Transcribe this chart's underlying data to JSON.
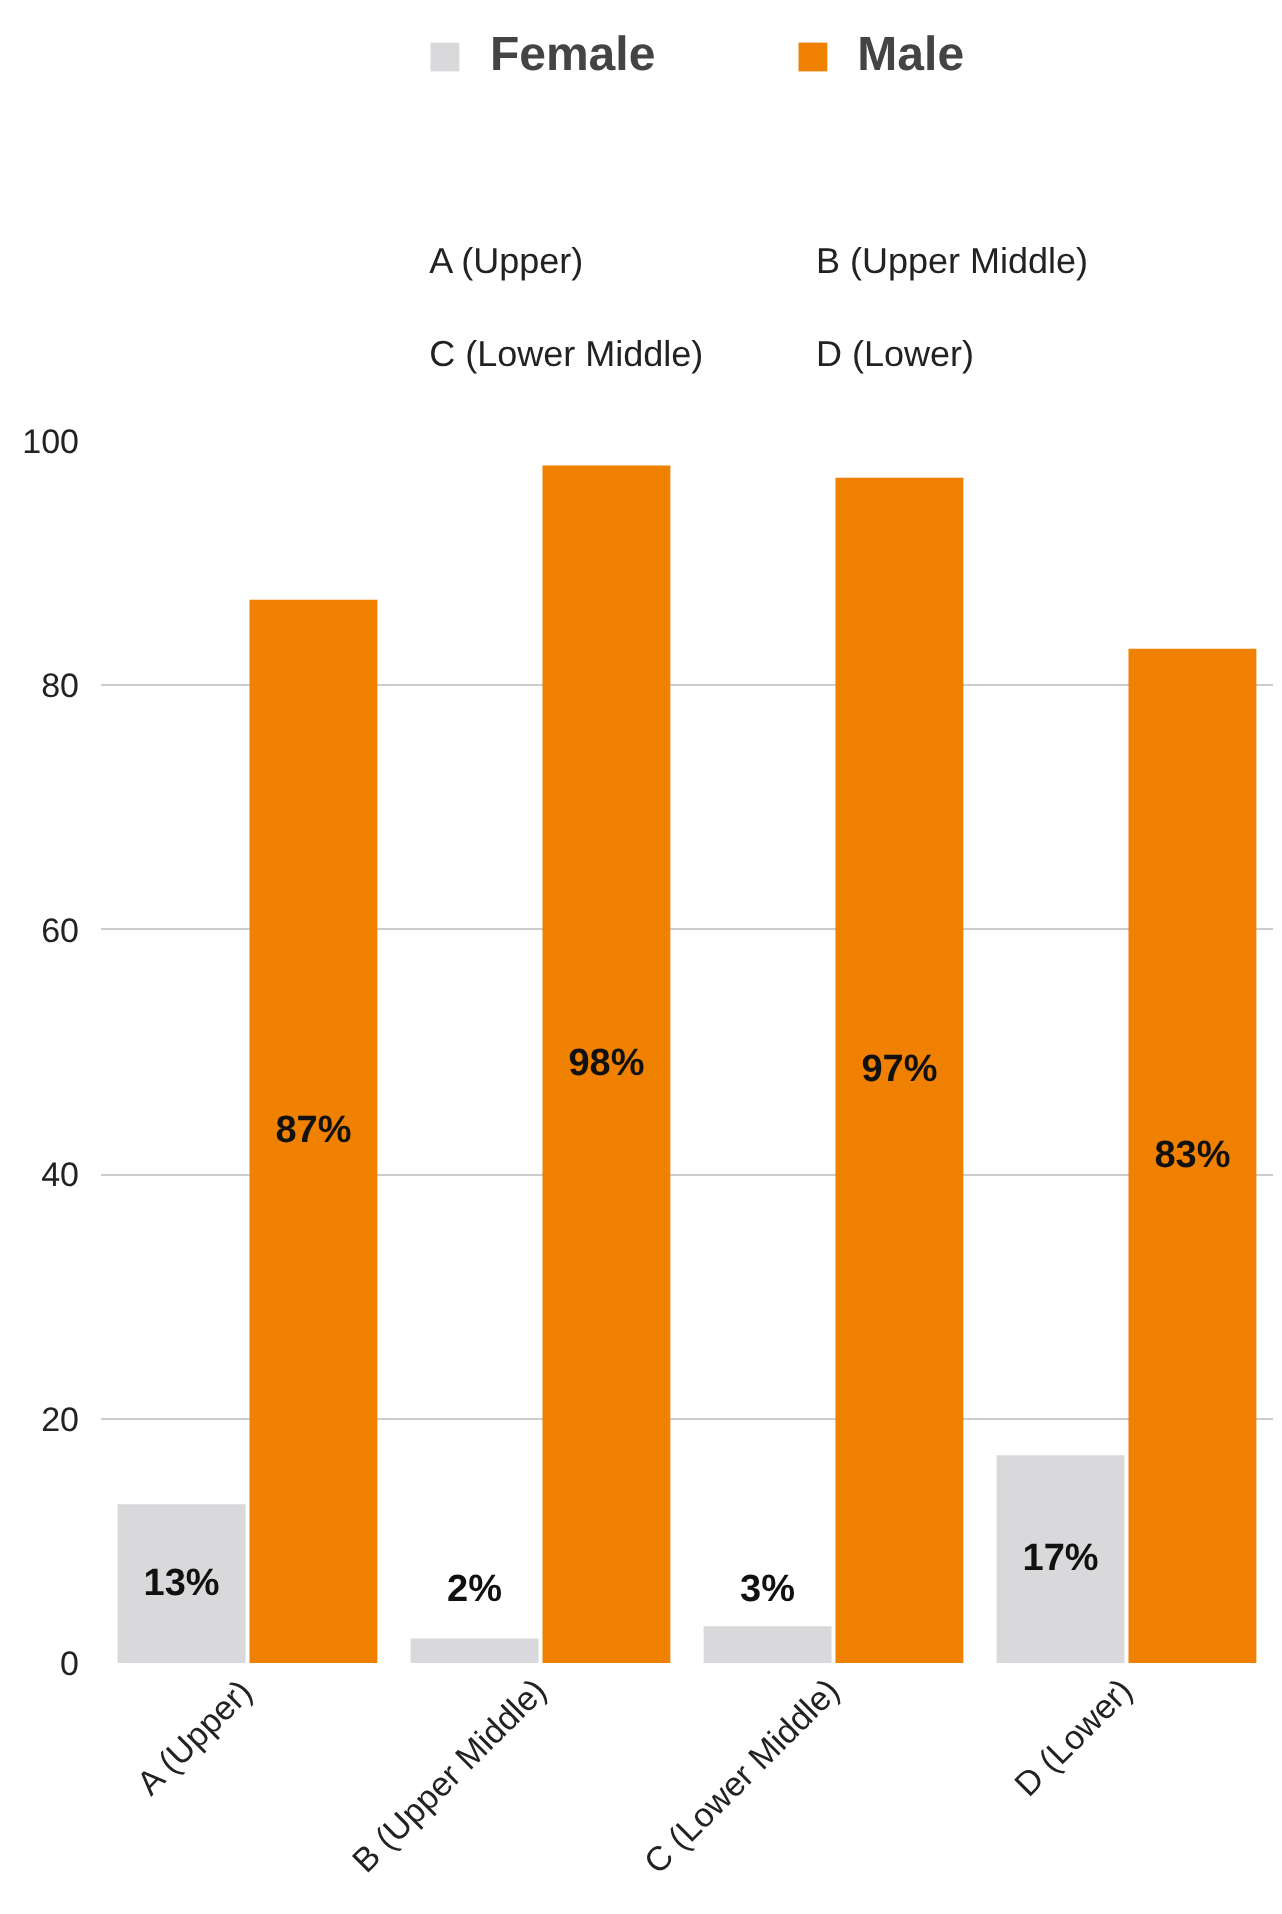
{
  "chart_data": {
    "type": "bar",
    "categories": [
      "A (Upper)",
      "B (Upper Middle)",
      "C (Lower Middle)",
      "D (Lower)"
    ],
    "series": [
      {
        "name": "Female",
        "color": "#d9d9db",
        "values": [
          13,
          2,
          3,
          17
        ],
        "value_labels": [
          "13%",
          "2%",
          "3%",
          "17%"
        ]
      },
      {
        "name": "Male",
        "color": "#ef8000",
        "values": [
          87,
          98,
          97,
          83
        ],
        "value_labels": [
          "87%",
          "98%",
          "97%",
          "83%"
        ]
      }
    ],
    "ylim": [
      0,
      100
    ],
    "yticks": [
      0,
      20,
      40,
      60,
      80,
      100
    ],
    "grid": "y",
    "legend": "top"
  }
}
